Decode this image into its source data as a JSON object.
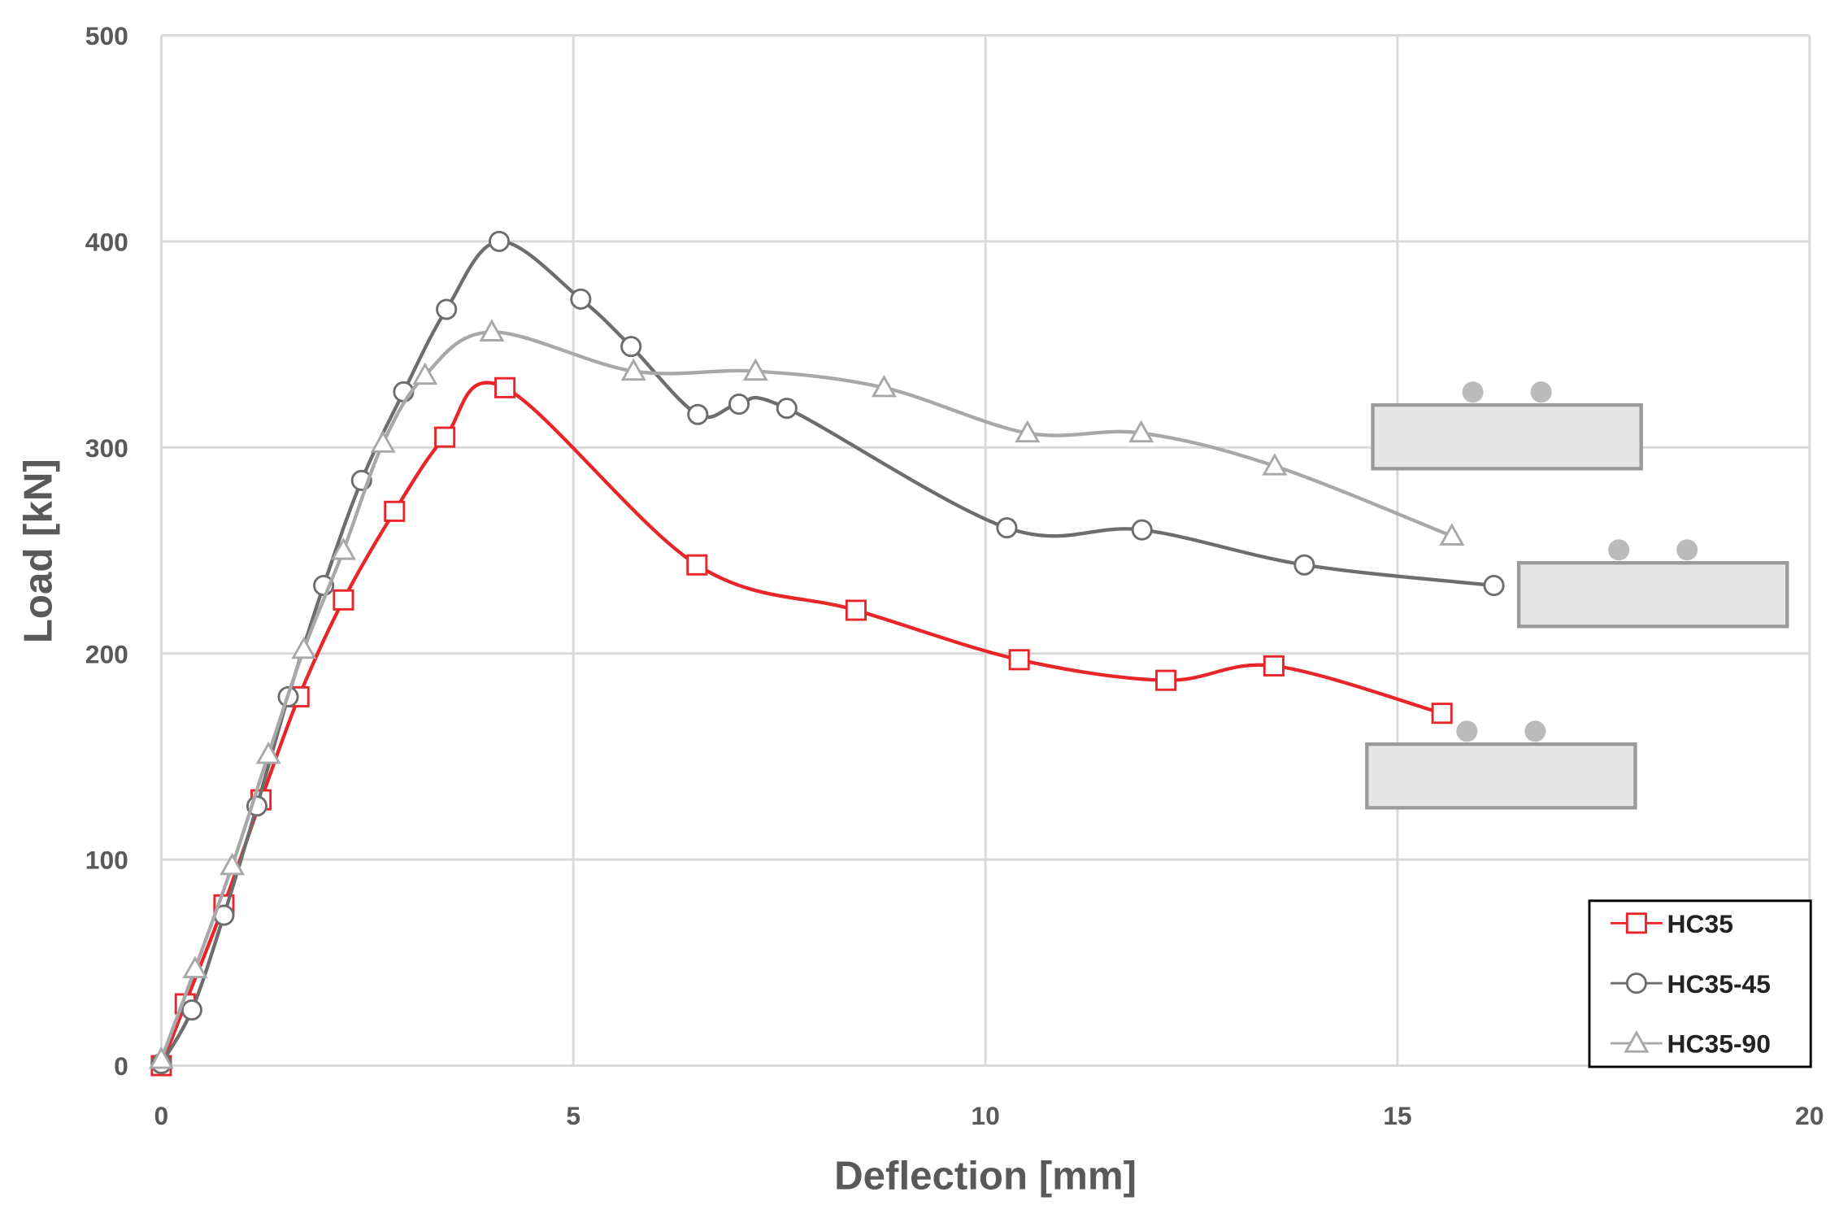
{
  "chart_data": {
    "type": "line",
    "xlabel": "Deflection [mm]",
    "ylabel": "Load [kN]",
    "xlim": [
      0,
      20
    ],
    "ylim": [
      0,
      500
    ],
    "xticks": [
      0,
      5,
      10,
      15,
      20
    ],
    "yticks": [
      0,
      100,
      200,
      300,
      400,
      500
    ],
    "grid": true,
    "legend": "lower right",
    "smooth": true,
    "series": [
      {
        "name": "HC35",
        "color": "#e8262a",
        "marker": "square",
        "x": [
          0,
          0.29,
          0.76,
          1.21,
          1.67,
          2.21,
          2.83,
          3.44,
          4.17,
          6.5,
          8.43,
          10.41,
          12.19,
          13.5,
          15.54
        ],
        "values": [
          0,
          30,
          78,
          129,
          179,
          226,
          269,
          305,
          329,
          243,
          221,
          197,
          187,
          194,
          171
        ]
      },
      {
        "name": "HC35-45",
        "color": "#6d6d6d",
        "marker": "circle",
        "x": [
          0,
          0.37,
          0.76,
          1.16,
          1.54,
          1.97,
          2.43,
          2.94,
          3.46,
          4.1,
          5.09,
          5.7,
          6.51,
          7.01,
          7.59,
          10.26,
          11.9,
          13.87,
          16.17
        ],
        "values": [
          1,
          27,
          73,
          126,
          179,
          233,
          284,
          327,
          367,
          400,
          372,
          349,
          316,
          321,
          319,
          261,
          260,
          243,
          233
        ]
      },
      {
        "name": "HC35-90",
        "color": "#a8a8a8",
        "marker": "triangle",
        "x": [
          0,
          0.41,
          0.86,
          1.3,
          1.73,
          2.21,
          2.69,
          3.2,
          4.01,
          5.73,
          7.21,
          8.77,
          10.51,
          11.89,
          13.51,
          15.66
        ],
        "values": [
          3,
          47,
          97,
          151,
          202,
          250,
          302,
          335,
          356,
          337,
          337,
          329,
          307,
          307,
          291,
          257
        ]
      }
    ]
  }
}
